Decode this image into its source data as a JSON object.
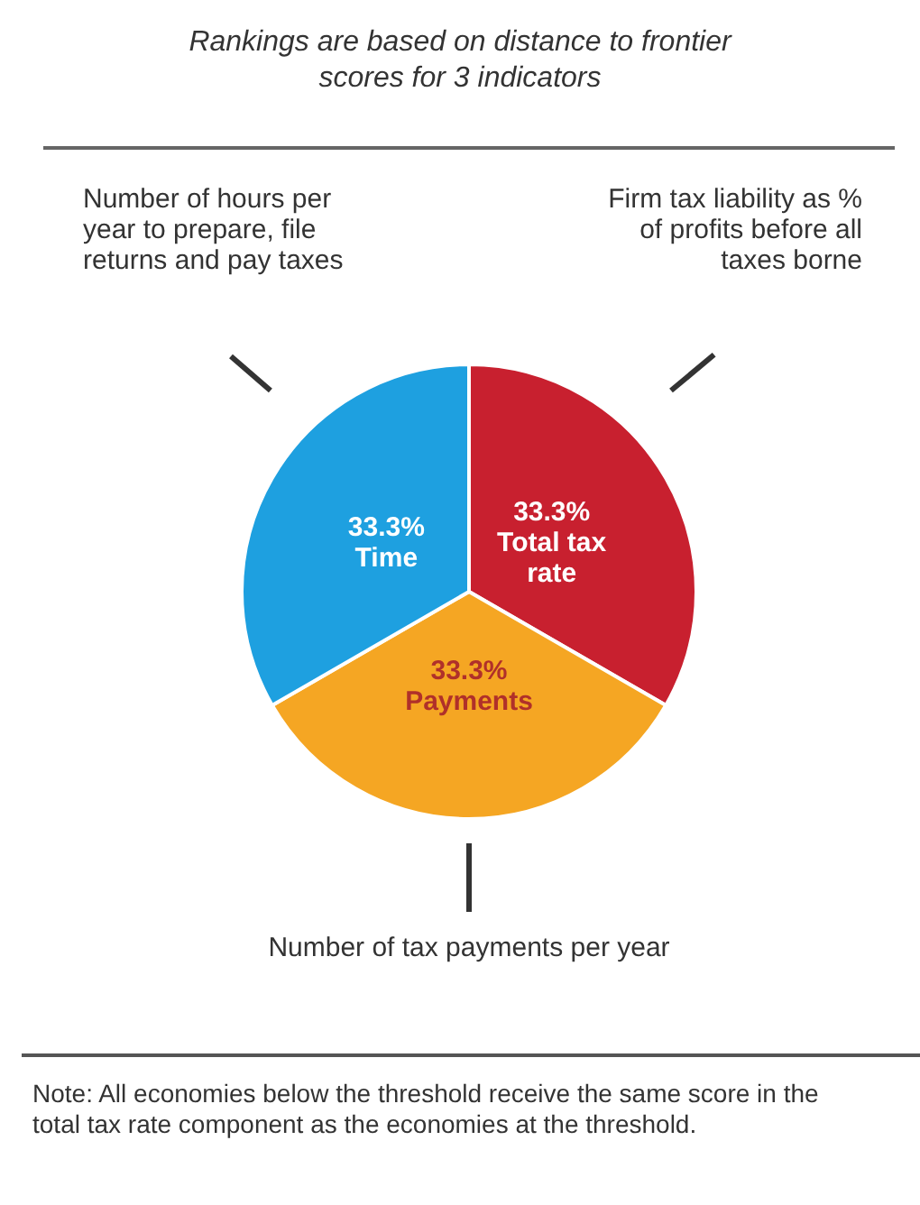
{
  "chart_data": {
    "type": "pie",
    "title": "Rankings are based on distance to frontier scores for 3 indicators",
    "categories": [
      "Total tax rate",
      "Payments",
      "Time"
    ],
    "values": [
      33.3,
      33.3,
      33.3
    ],
    "colors": [
      "#c8202f",
      "#f5a623",
      "#1ea0e0"
    ],
    "value_labels": [
      "33.3%",
      "33.3%",
      "33.3%"
    ],
    "legend": false,
    "annotations": [
      "Number of hours per year to prepare, file returns and pay taxes",
      "Firm tax liability as % of profits before all taxes borne",
      "Number of tax payments per year",
      "Note: All economies below the threshold receive the same score in the total tax rate component as the economies at the threshold."
    ]
  }
}
